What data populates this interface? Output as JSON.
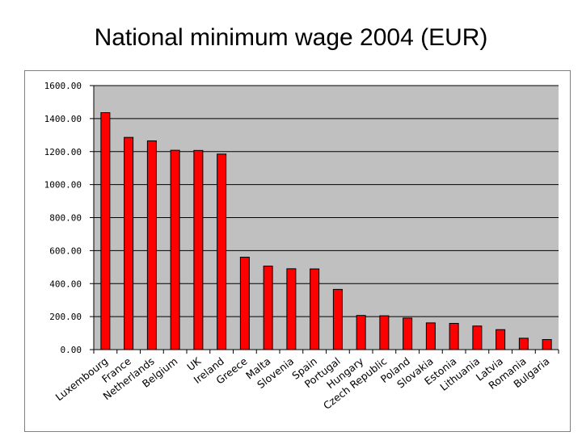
{
  "title": "National minimum wage 2004 (EUR)",
  "colors": {
    "bar_fill": "#ff0000",
    "bar_stroke": "#000000",
    "plot_background": "#c0c0c0",
    "gridline": "#000000",
    "frame": "#808080"
  },
  "chart_data": {
    "type": "bar",
    "categories": [
      "Luxembourg",
      "France",
      "Netherlands",
      "Belgium",
      "UK",
      "Ireland",
      "Greece",
      "Malta",
      "Slovenia",
      "Spain",
      "Portugal",
      "Hungary",
      "Czech Republic",
      "Poland",
      "Slovakia",
      "Estonia",
      "Lithuania",
      "Latvia",
      "Romania",
      "Bulgaria"
    ],
    "values": [
      1436,
      1286,
      1265,
      1208,
      1207,
      1185,
      560,
      506,
      490,
      489,
      365,
      207,
      205,
      191,
      162,
      159,
      143,
      121,
      69,
      61
    ],
    "ylim": [
      0,
      1600
    ],
    "yticks": [
      "0.00",
      "200.00",
      "400.00",
      "600.00",
      "800.00",
      "1000.00",
      "1200.00",
      "1400.00",
      "1600.00"
    ],
    "xlabel": "",
    "ylabel": "",
    "grid": true,
    "legend": false
  }
}
